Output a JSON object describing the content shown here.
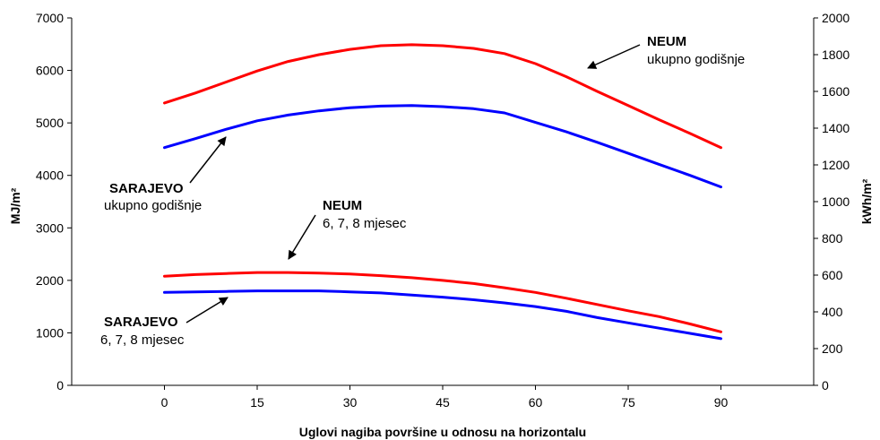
{
  "chart_data": {
    "type": "line",
    "title": "",
    "xlabel": "Uglovi nagiba površine u odnosu na horizontalu",
    "ylabel_left": "MJ/m²",
    "ylabel_right": "kWh/m²",
    "xlim": [
      -15,
      105
    ],
    "ylim_left": [
      0,
      7000
    ],
    "ylim_right": [
      0,
      2000
    ],
    "x_ticks": [
      0,
      15,
      30,
      45,
      60,
      75,
      90
    ],
    "y_ticks_left": [
      0,
      1000,
      2000,
      3000,
      4000,
      5000,
      6000,
      7000
    ],
    "y_ticks_right": [
      0,
      200,
      400,
      600,
      800,
      1000,
      1200,
      1400,
      1600,
      1800,
      2000
    ],
    "grid": false,
    "x": [
      0,
      5,
      10,
      15,
      20,
      25,
      30,
      35,
      40,
      45,
      50,
      55,
      60,
      65,
      70,
      75,
      80,
      85,
      90
    ],
    "series": [
      {
        "id": "neum-annual",
        "color": "#ff0000",
        "values": [
          5380,
          5570,
          5780,
          5990,
          6170,
          6300,
          6400,
          6470,
          6490,
          6470,
          6420,
          6320,
          6130,
          5880,
          5600,
          5330,
          5060,
          4800,
          4530
        ]
      },
      {
        "id": "sarajevo-annual",
        "color": "#0000ff",
        "values": [
          4530,
          4700,
          4880,
          5040,
          5150,
          5230,
          5290,
          5320,
          5330,
          5310,
          5270,
          5190,
          5010,
          4830,
          4630,
          4420,
          4210,
          4000,
          3780
        ]
      },
      {
        "id": "neum-summer",
        "color": "#ff0000",
        "values": [
          2080,
          2110,
          2130,
          2150,
          2150,
          2140,
          2120,
          2090,
          2050,
          2000,
          1940,
          1860,
          1770,
          1660,
          1540,
          1420,
          1310,
          1170,
          1020
        ]
      },
      {
        "id": "sarajevo-summer",
        "color": "#0000ff",
        "values": [
          1770,
          1780,
          1790,
          1800,
          1800,
          1800,
          1780,
          1760,
          1720,
          1680,
          1630,
          1570,
          1500,
          1410,
          1290,
          1190,
          1090,
          990,
          890
        ]
      }
    ],
    "annotations": [
      {
        "id": "neum-annual",
        "title": "NEUM",
        "subtitle": "ukupno godišnje"
      },
      {
        "id": "sarajevo-annual",
        "title": "SARAJEVO",
        "subtitle": "ukupno godišnje"
      },
      {
        "id": "neum-summer",
        "title": "NEUM",
        "subtitle": "6, 7, 8 mjesec"
      },
      {
        "id": "sarajevo-summer",
        "title": "SARAJEVO",
        "subtitle": "6, 7, 8 mjesec"
      }
    ]
  }
}
